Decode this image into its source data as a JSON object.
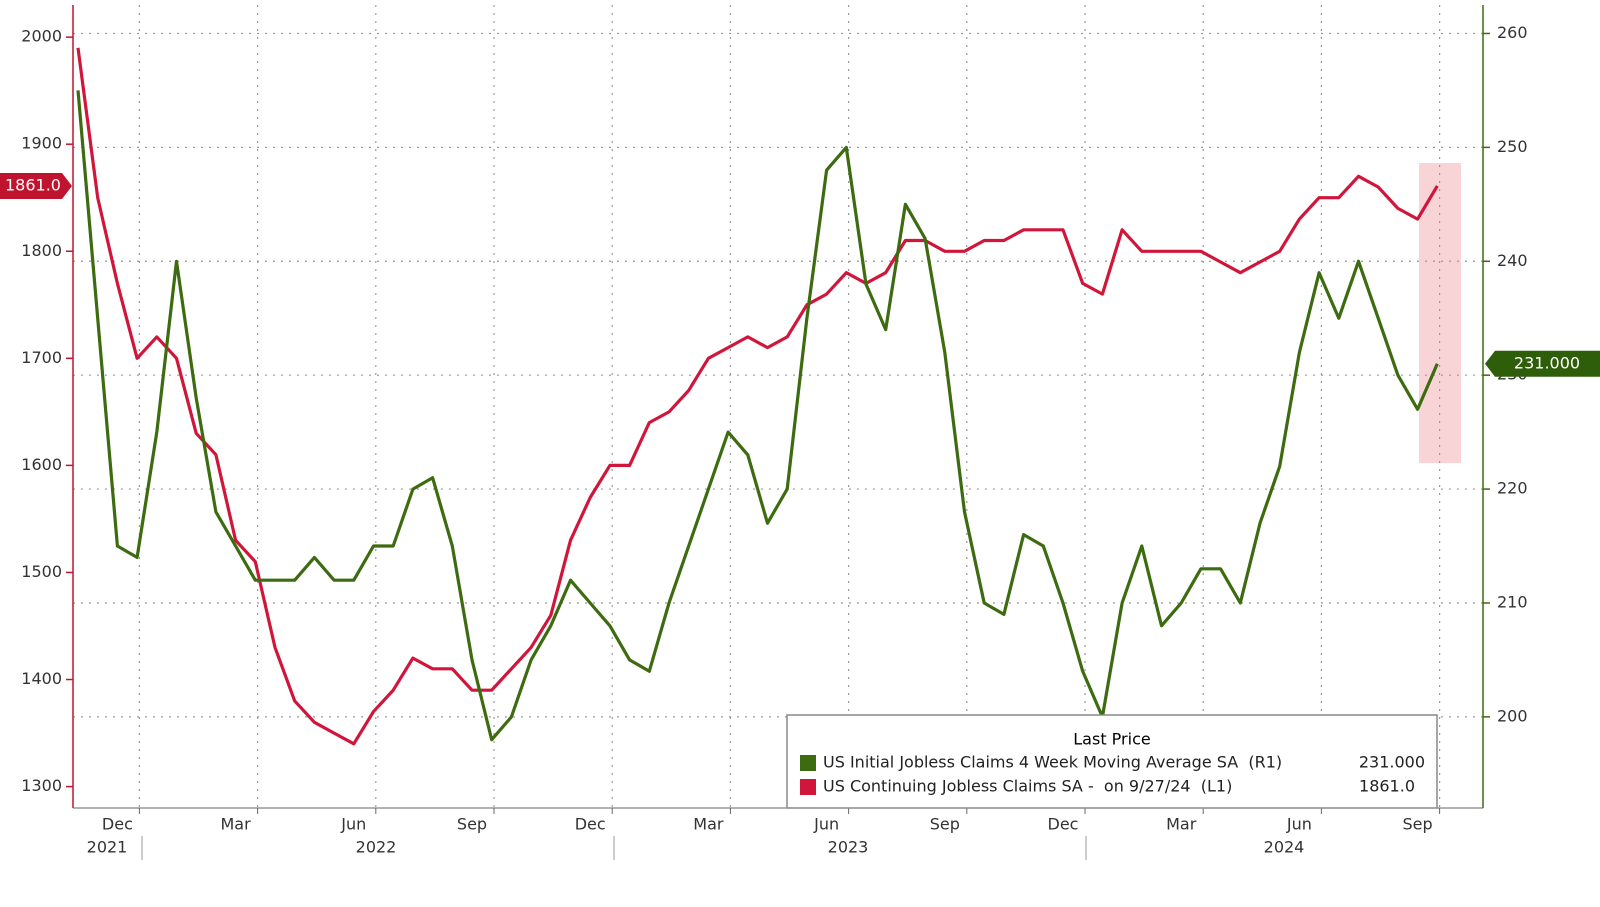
{
  "chart_data": {
    "type": "line",
    "categories": [
      null,
      null,
      "Dec",
      null,
      null,
      null,
      null,
      null,
      "Mar",
      null,
      null,
      null,
      null,
      null,
      "Jun",
      null,
      null,
      null,
      null,
      null,
      "Sep",
      null,
      null,
      null,
      null,
      null,
      "Dec",
      null,
      null,
      null,
      null,
      null,
      "Mar",
      null,
      null,
      null,
      null,
      null,
      "Jun",
      null,
      null,
      null,
      null,
      null,
      "Sep",
      null,
      null,
      null,
      null,
      null,
      "Dec",
      null,
      null,
      null,
      null,
      null,
      "Mar",
      null,
      null,
      null,
      null,
      null,
      "Jun",
      null,
      null,
      null,
      null,
      null,
      "Sep",
      null
    ],
    "year_labels": [
      "2021",
      "2022",
      "2023",
      "2024"
    ],
    "series": [
      {
        "name": "US Initial Jobless Claims 4 Week Moving Average SA  (R1)",
        "color": "#3d6b0f",
        "axis": "y2",
        "last_label": "231.000",
        "values": [
          255,
          235,
          215,
          214,
          225,
          240,
          228,
          218,
          215,
          212,
          212,
          212,
          214,
          212,
          212,
          215,
          215,
          220,
          221,
          215,
          205,
          198,
          200,
          205,
          208,
          212,
          210,
          208,
          205,
          204,
          210,
          215,
          220,
          225,
          223,
          217,
          220,
          235,
          248,
          250,
          238,
          234,
          245,
          242,
          232,
          218,
          210,
          209,
          216,
          215,
          210,
          204,
          200,
          210,
          215,
          208,
          210,
          213,
          213,
          210,
          217,
          222,
          232,
          239,
          235,
          240,
          235,
          230,
          227,
          231
        ]
      },
      {
        "name": "US Continuing Jobless Claims SA -  on 9/27/24  (L1)",
        "color": "#d0163a",
        "axis": "y",
        "last_label": "1861.0",
        "values": [
          1990,
          1850,
          1770,
          1700,
          1720,
          1700,
          1630,
          1610,
          1530,
          1510,
          1430,
          1380,
          1360,
          1350,
          1340,
          1370,
          1390,
          1420,
          1410,
          1410,
          1390,
          1390,
          1410,
          1430,
          1460,
          1530,
          1570,
          1600,
          1600,
          1640,
          1650,
          1670,
          1700,
          1710,
          1720,
          1710,
          1720,
          1750,
          1760,
          1780,
          1770,
          1780,
          1810,
          1810,
          1800,
          1800,
          1810,
          1810,
          1820,
          1820,
          1820,
          1770,
          1760,
          1820,
          1800,
          1800,
          1800,
          1800,
          1790,
          1780,
          1790,
          1800,
          1830,
          1850,
          1850,
          1870,
          1860,
          1840,
          1830,
          1861
        ]
      }
    ],
    "legend_title": "Last Price",
    "ylim": [
      1280,
      2030
    ],
    "yticks": [
      1300,
      1400,
      1500,
      1600,
      1700,
      1800,
      1900,
      2000
    ],
    "y2lim": [
      192,
      262.5
    ],
    "y2ticks": [
      200,
      210,
      220,
      230,
      240,
      250,
      260
    ],
    "grid": true
  }
}
